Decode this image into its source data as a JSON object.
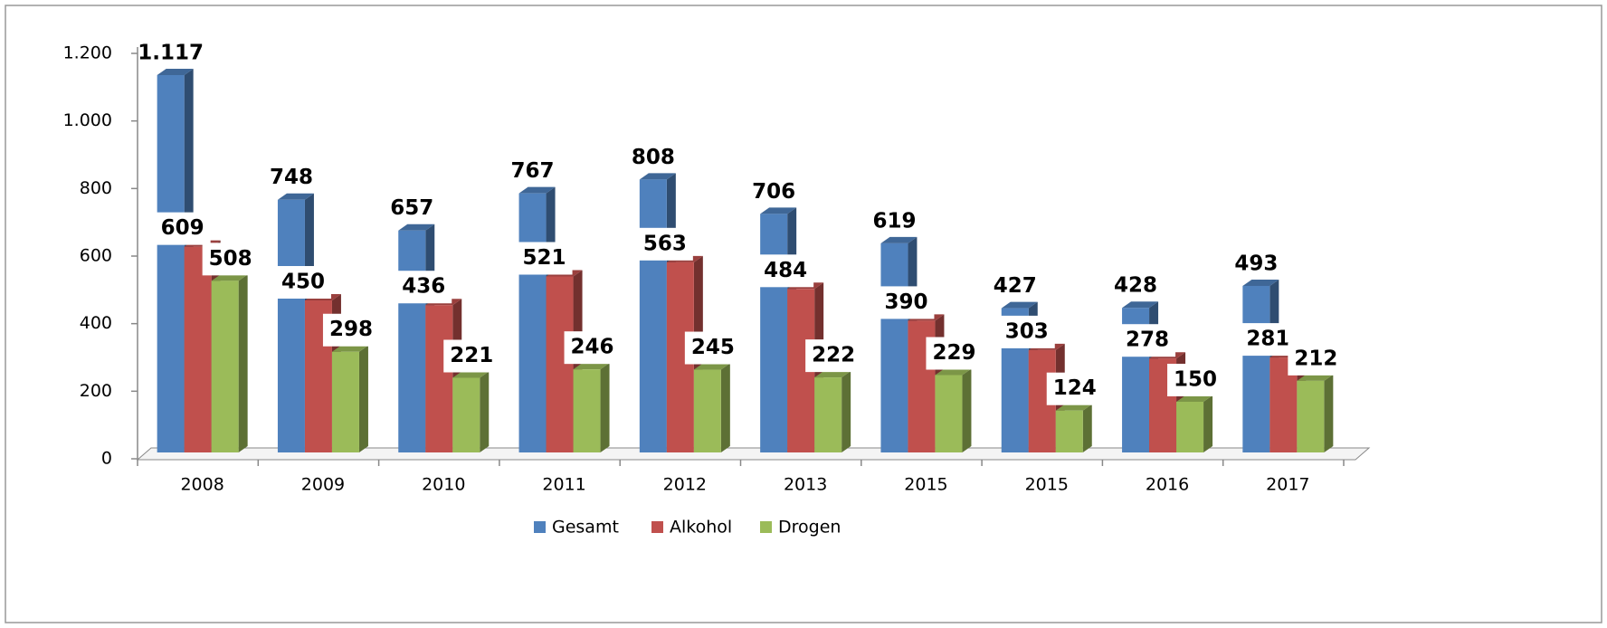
{
  "chart_data": {
    "type": "bar3d",
    "categories": [
      "2008",
      "2009",
      "2010",
      "2011",
      "2012",
      "2013",
      "2015",
      "2015",
      "2016",
      "2017"
    ],
    "series": [
      {
        "name": "Gesamt",
        "color": "#4f81bd",
        "values": [
          1117,
          748,
          657,
          767,
          808,
          706,
          619,
          427,
          428,
          493
        ],
        "value_labels": [
          "1.117",
          "748",
          "657",
          "767",
          "808",
          "706",
          "619",
          "427",
          "428",
          "493"
        ]
      },
      {
        "name": "Alkohol",
        "color": "#c0504d",
        "values": [
          609,
          450,
          436,
          521,
          563,
          484,
          390,
          303,
          278,
          281
        ]
      },
      {
        "name": "Drogen",
        "color": "#9bbb59",
        "values": [
          508,
          298,
          221,
          246,
          245,
          222,
          229,
          124,
          150,
          212
        ]
      }
    ],
    "ylim": [
      0,
      1200
    ],
    "yticks": [
      0,
      200,
      400,
      600,
      800,
      {
        "value": 1000,
        "label": "1.000"
      },
      {
        "value": 1200,
        "label": "1.200"
      }
    ],
    "legend": "bottom"
  }
}
